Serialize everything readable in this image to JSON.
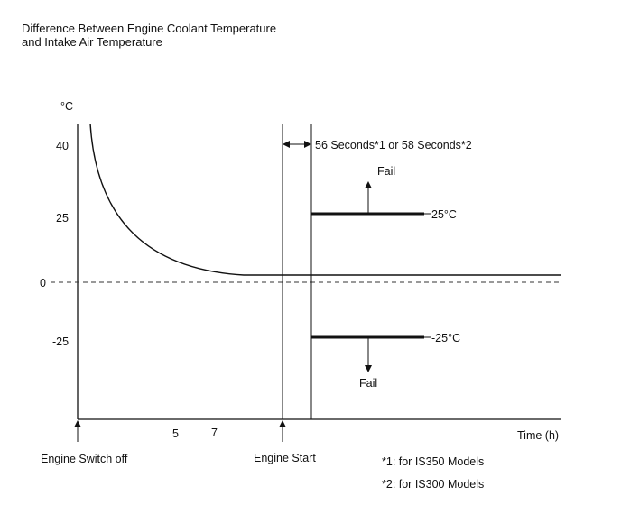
{
  "chart_data": {
    "type": "line",
    "title_line1": "Difference Between Engine Coolant Temperature",
    "title_line2": "and Intake Air Temperature",
    "y_unit": "°C",
    "y_ticks": [
      "40",
      "25",
      "0",
      "-25"
    ],
    "x_ticks": [
      "5",
      "7"
    ],
    "x_axis_label": "Time (h)",
    "thresholds": [
      {
        "value": 25,
        "label": "25°C",
        "fail_label": "Fail",
        "direction": "up"
      },
      {
        "value": -25,
        "label": "-25°C",
        "fail_label": "Fail",
        "direction": "down"
      }
    ],
    "interval_label": "56 Seconds*1 or 58 Seconds*2",
    "events": [
      "Engine Switch off",
      "Engine Start"
    ],
    "footnotes": [
      "*1: for IS350 Models",
      "*2: for IS300 Models"
    ],
    "grid": false,
    "zero_line": "dashed"
  }
}
